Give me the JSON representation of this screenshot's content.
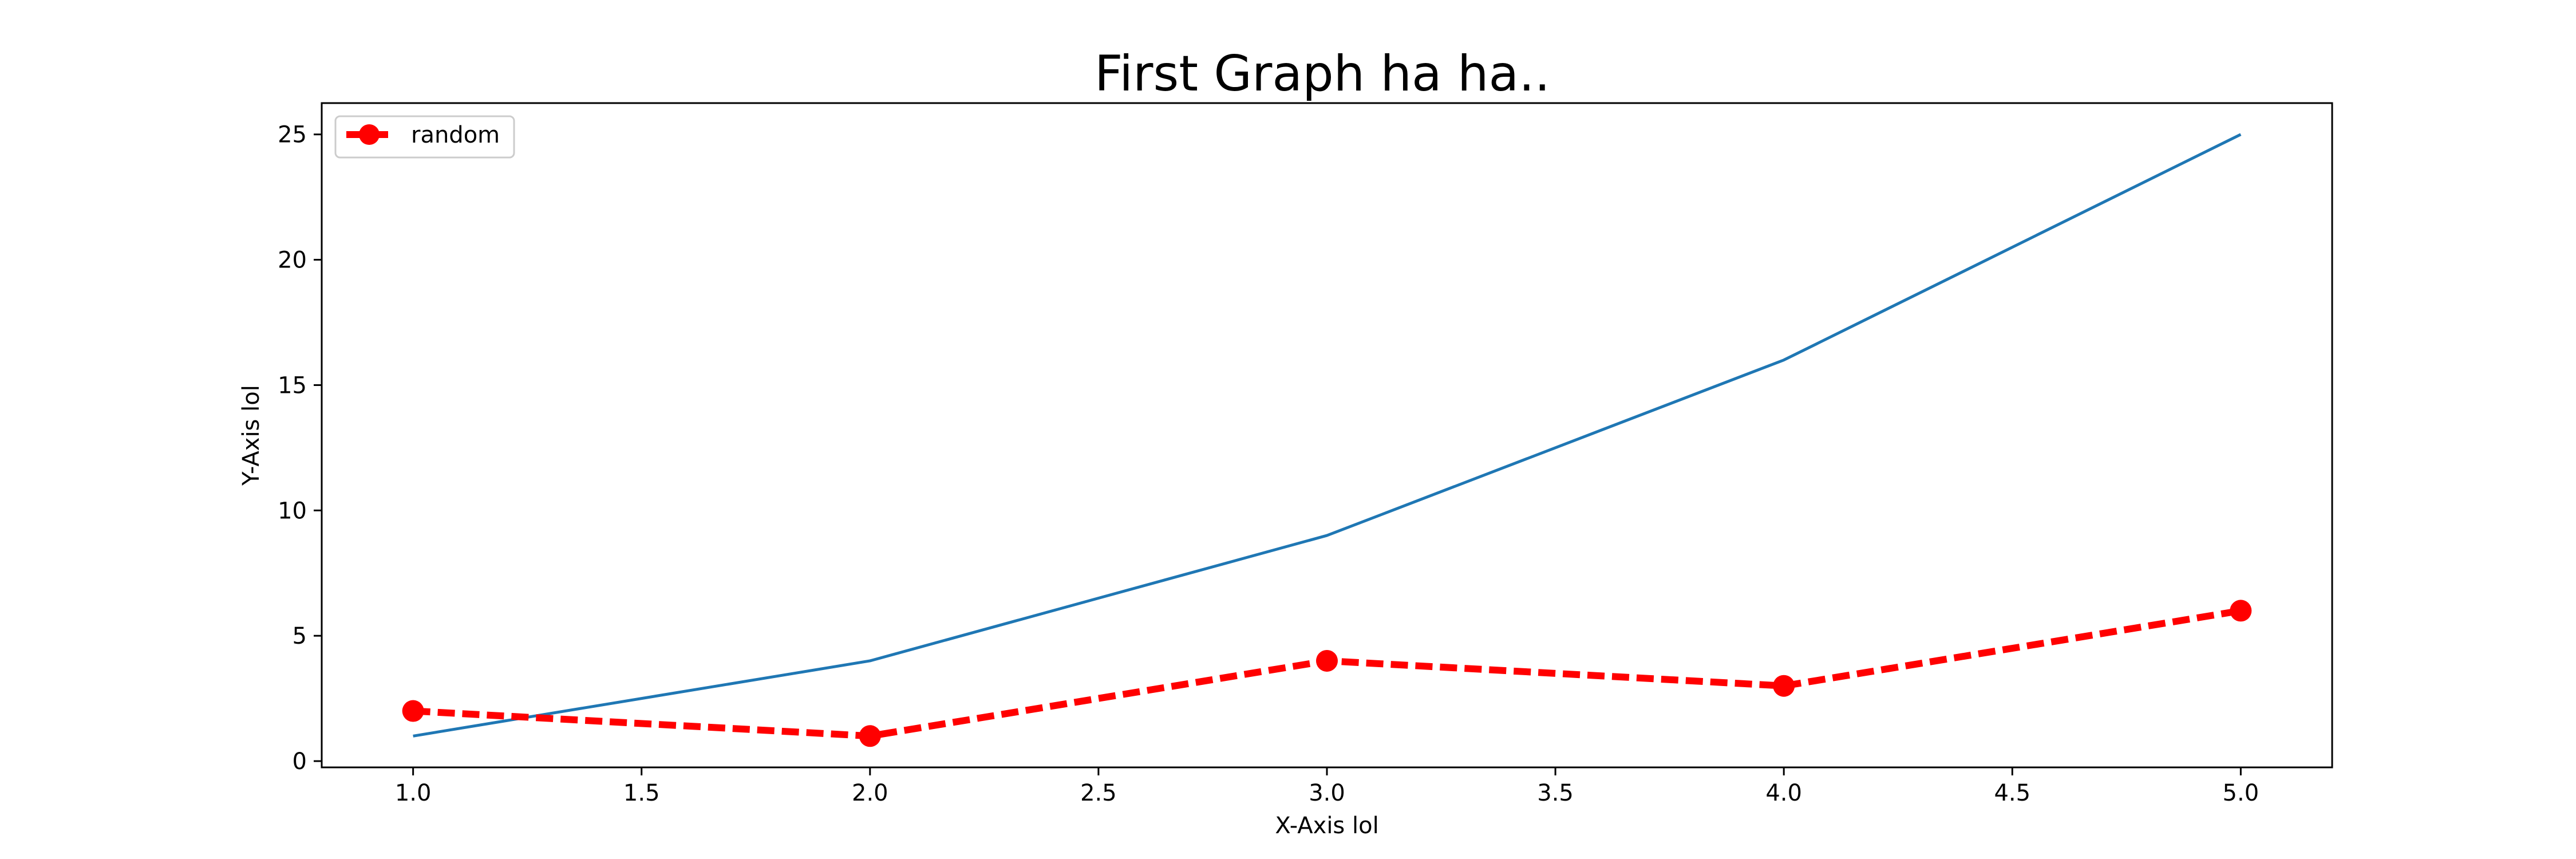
{
  "chart_data": {
    "type": "line",
    "title": "First Graph ha ha..",
    "xlabel": "X-Axis lol",
    "ylabel": "Y-Axis lol",
    "xlim": [
      0.8,
      5.2
    ],
    "ylim": [
      -0.25,
      26.25
    ],
    "xticks": [
      1.0,
      1.5,
      2.0,
      2.5,
      3.0,
      3.5,
      4.0,
      4.5,
      5.0
    ],
    "xtick_labels": [
      "1.0",
      "1.5",
      "2.0",
      "2.5",
      "3.0",
      "3.5",
      "4.0",
      "4.5",
      "5.0"
    ],
    "yticks": [
      0,
      5,
      10,
      15,
      20,
      25
    ],
    "ytick_labels": [
      "0",
      "5",
      "10",
      "15",
      "20",
      "25"
    ],
    "grid": false,
    "legend_position": "top-left",
    "series": [
      {
        "x": [
          1,
          2,
          3,
          4,
          5
        ],
        "values": [
          1,
          4,
          9,
          16,
          25
        ],
        "color": "#1f77b4",
        "line_style": "solid",
        "marker": "none",
        "in_legend": false
      },
      {
        "name": "random",
        "x": [
          1,
          2,
          3,
          4,
          5
        ],
        "values": [
          2,
          1,
          4,
          3,
          6
        ],
        "color": "#ff0000",
        "line_style": "dashed",
        "marker": "circle",
        "in_legend": true
      }
    ]
  }
}
